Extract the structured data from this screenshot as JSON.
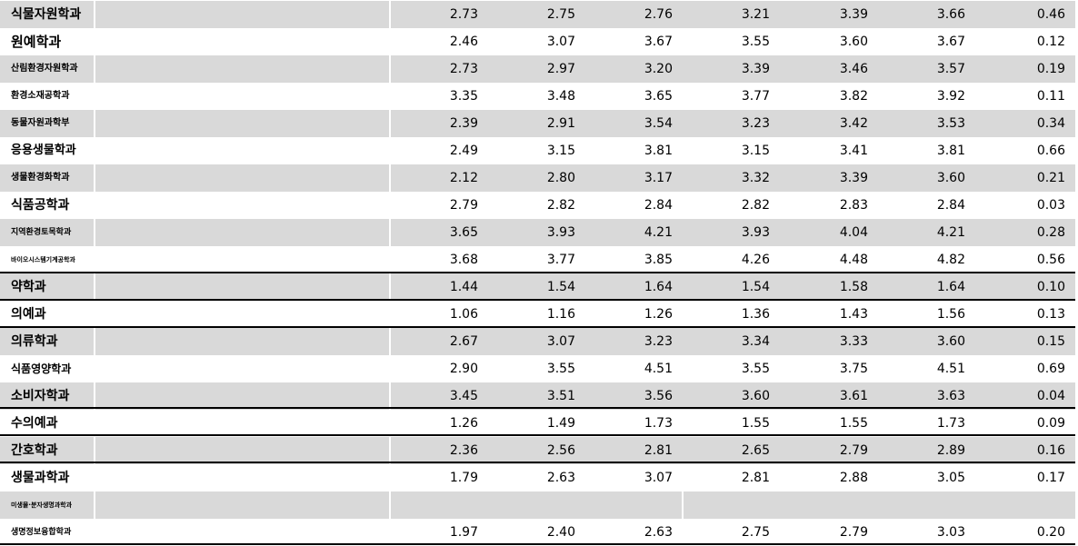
{
  "table": {
    "rows": [
      [
        "식물자원학과",
        "2.73",
        "2.75",
        "2.76",
        "3.21",
        "3.39",
        "3.66",
        "0.46"
      ],
      [
        "원예학과",
        "2.46",
        "3.07",
        "3.67",
        "3.55",
        "3.60",
        "3.67",
        "0.12"
      ],
      [
        "산림환경자원학과",
        "2.73",
        "2.97",
        "3.20",
        "3.39",
        "3.46",
        "3.57",
        "0.19"
      ],
      [
        "환경소재공학과",
        "3.35",
        "3.48",
        "3.65",
        "3.77",
        "3.82",
        "3.92",
        "0.11"
      ],
      [
        "동물자원과학부",
        "2.39",
        "2.91",
        "3.54",
        "3.23",
        "3.42",
        "3.53",
        "0.34"
      ],
      [
        "응용생물학과",
        "2.49",
        "3.15",
        "3.81",
        "3.15",
        "3.41",
        "3.81",
        "0.66"
      ],
      [
        "생물환경화학과",
        "2.12",
        "2.80",
        "3.17",
        "3.32",
        "3.39",
        "3.60",
        "0.21"
      ],
      [
        "식품공학과",
        "2.79",
        "2.82",
        "2.84",
        "2.82",
        "2.83",
        "2.84",
        "0.03"
      ],
      [
        "지역환경토목학과",
        "3.65",
        "3.93",
        "4.21",
        "3.93",
        "4.04",
        "4.21",
        "0.28"
      ],
      [
        "바이오시스템기계공학과",
        "3.68",
        "3.77",
        "3.85",
        "4.26",
        "4.48",
        "4.82",
        "0.56"
      ],
      [
        "약학과",
        "1.44",
        "1.54",
        "1.64",
        "1.54",
        "1.58",
        "1.64",
        "0.10"
      ],
      [
        "의예과",
        "1.06",
        "1.16",
        "1.26",
        "1.36",
        "1.43",
        "1.56",
        "0.13"
      ],
      [
        "의류학과",
        "2.67",
        "3.07",
        "3.23",
        "3.34",
        "3.33",
        "3.60",
        "0.15"
      ],
      [
        "식품영양학과",
        "2.90",
        "3.55",
        "4.51",
        "3.55",
        "3.75",
        "4.51",
        "0.69"
      ],
      [
        "소비자학과",
        "3.45",
        "3.51",
        "3.56",
        "3.60",
        "3.61",
        "3.63",
        "0.04"
      ],
      [
        "수의예과",
        "1.26",
        "1.49",
        "1.73",
        "1.55",
        "1.55",
        "1.73",
        "0.09"
      ],
      [
        "간호학과",
        "2.36",
        "2.56",
        "2.81",
        "2.65",
        "2.79",
        "2.89",
        "0.16"
      ],
      [
        "생물과학과",
        "1.79",
        "2.63",
        "3.07",
        "2.81",
        "2.88",
        "3.05",
        "0.17"
      ],
      [
        "미생물·분자생명과학과"
      ],
      [
        "생명정보융합학과",
        "1.97",
        "2.40",
        "2.63",
        "2.75",
        "2.79",
        "3.03",
        "0.20"
      ]
    ]
  }
}
